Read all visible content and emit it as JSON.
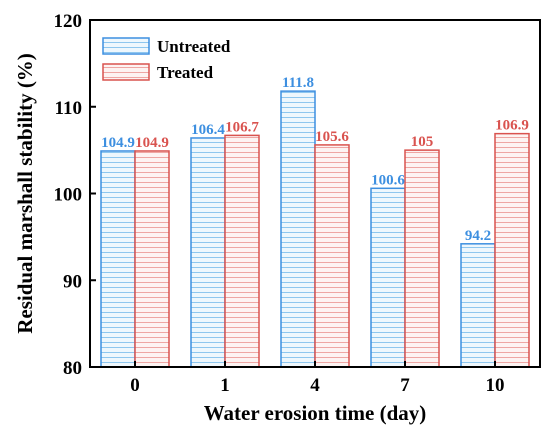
{
  "chart_data": {
    "type": "bar",
    "title": "",
    "xlabel": "Water erosion time (day)",
    "ylabel": "Residual marshall stability (%)",
    "categories": [
      "0",
      "1",
      "4",
      "7",
      "10"
    ],
    "series": [
      {
        "name": "Untreated",
        "values": [
          104.9,
          106.4,
          111.8,
          100.6,
          94.2
        ],
        "labels": [
          "104.9",
          "106.4",
          "111.8",
          "100.6",
          "94.2"
        ],
        "color": "#3d8fe0",
        "hatch_color": "#8ec6ee",
        "fill": "#eef7fd"
      },
      {
        "name": "Treated",
        "values": [
          104.9,
          106.7,
          105.6,
          105,
          106.9
        ],
        "labels": [
          "104.9",
          "106.7",
          "105.6",
          "105",
          "106.9"
        ],
        "color": "#d9534f",
        "hatch_color": "#eea6a3",
        "fill": "#fdf3f2"
      }
    ],
    "ylim": [
      80,
      120
    ],
    "yticks": [
      "80",
      "90",
      "100",
      "110",
      "120"
    ],
    "pattern": "horizontal-hatch",
    "legend_position": "top-left",
    "grid": false
  }
}
